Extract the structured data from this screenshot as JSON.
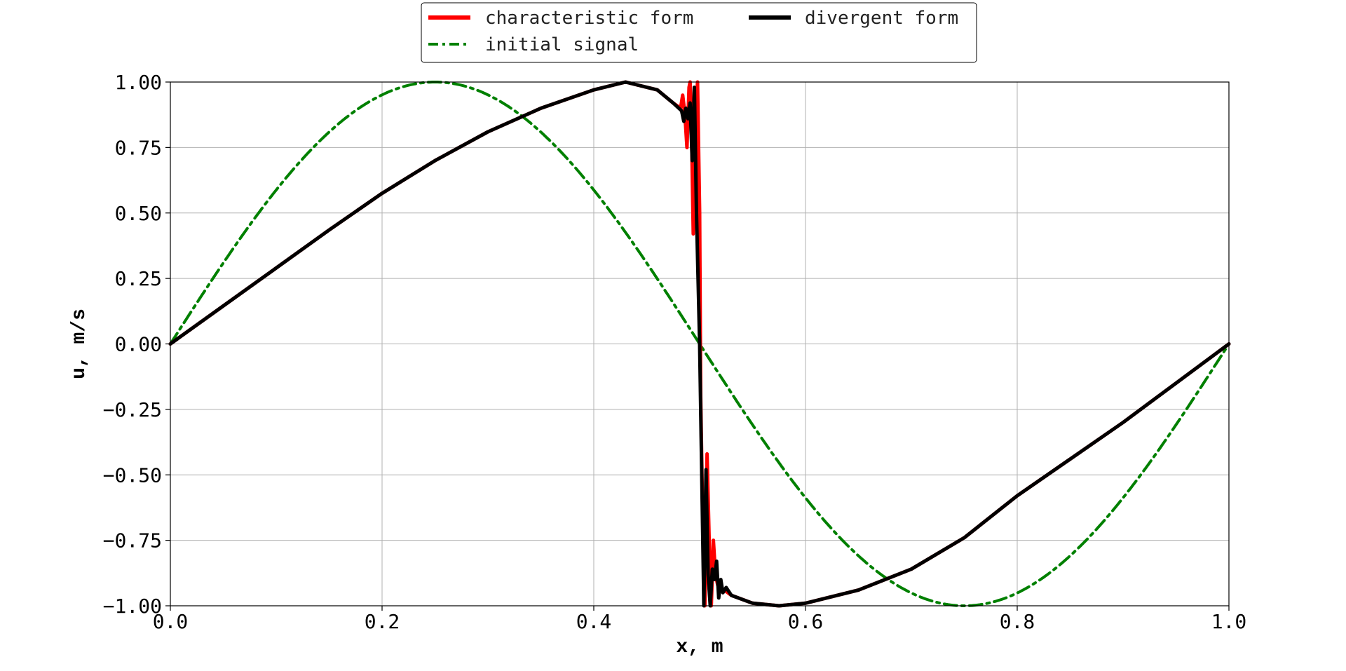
{
  "chart_data": {
    "type": "line",
    "xlabel": "x, m",
    "ylabel": "u, m/s",
    "xlim": [
      0.0,
      1.0
    ],
    "ylim": [
      -1.0,
      1.0
    ],
    "xticks": [
      "0.0",
      "0.2",
      "0.4",
      "0.6",
      "0.8",
      "1.0"
    ],
    "yticks": [
      "1.00",
      "0.75",
      "0.50",
      "0.25",
      "0.00",
      "−0.25",
      "−0.50",
      "−0.75",
      "−1.00"
    ],
    "grid": true,
    "legend_placement": "top-center",
    "series": [
      {
        "name": "characteristic form",
        "color": "#ff0000",
        "style": "solid",
        "x": [
          0.0,
          0.05,
          0.1,
          0.15,
          0.2,
          0.25,
          0.3,
          0.35,
          0.4,
          0.43,
          0.46,
          0.475,
          0.482,
          0.484,
          0.486,
          0.488,
          0.49,
          0.491,
          0.492,
          0.494,
          0.496,
          0.498,
          0.5,
          0.501,
          0.503,
          0.505,
          0.507,
          0.509,
          0.511,
          0.513,
          0.515,
          0.517,
          0.52,
          0.53,
          0.55,
          0.575,
          0.6,
          0.65,
          0.7,
          0.75,
          0.8,
          0.85,
          0.9,
          0.95,
          1.0
        ],
        "y": [
          0.0,
          0.145,
          0.29,
          0.435,
          0.575,
          0.7,
          0.81,
          0.9,
          0.97,
          1.0,
          0.97,
          0.92,
          0.9,
          0.95,
          0.88,
          0.75,
          0.98,
          1.0,
          0.9,
          0.42,
          0.85,
          1.0,
          0.5,
          -0.2,
          -0.7,
          -1.0,
          -0.42,
          -0.75,
          -1.0,
          -0.75,
          -0.88,
          -0.92,
          -0.93,
          -0.96,
          -0.99,
          -1.0,
          -0.99,
          -0.94,
          -0.86,
          -0.74,
          -0.58,
          -0.44,
          -0.3,
          -0.15,
          0.0
        ]
      },
      {
        "name": "divergent form",
        "color": "#000000",
        "style": "solid",
        "x": [
          0.0,
          0.05,
          0.1,
          0.15,
          0.2,
          0.25,
          0.3,
          0.35,
          0.4,
          0.43,
          0.46,
          0.475,
          0.483,
          0.485,
          0.487,
          0.489,
          0.491,
          0.493,
          0.495,
          0.497,
          0.5,
          0.502,
          0.504,
          0.506,
          0.508,
          0.51,
          0.512,
          0.514,
          0.516,
          0.518,
          0.52,
          0.522,
          0.525,
          0.53,
          0.55,
          0.575,
          0.6,
          0.65,
          0.7,
          0.75,
          0.8,
          0.85,
          0.9,
          0.95,
          1.0
        ],
        "y": [
          0.0,
          0.145,
          0.29,
          0.435,
          0.575,
          0.7,
          0.81,
          0.9,
          0.97,
          1.0,
          0.97,
          0.92,
          0.89,
          0.85,
          0.9,
          0.86,
          0.92,
          0.7,
          0.98,
          0.5,
          0.0,
          -0.5,
          -1.0,
          -0.48,
          -0.88,
          -1.0,
          -0.86,
          -0.9,
          -0.83,
          -0.97,
          -0.9,
          -0.95,
          -0.93,
          -0.96,
          -0.99,
          -1.0,
          -0.99,
          -0.94,
          -0.86,
          -0.74,
          -0.58,
          -0.44,
          -0.3,
          -0.15,
          0.0
        ]
      },
      {
        "name": "initial signal",
        "color": "#008000",
        "style": "dashdot",
        "function": "sin(2*pi*x)",
        "x": [
          0.0,
          0.025,
          0.05,
          0.075,
          0.1,
          0.125,
          0.15,
          0.175,
          0.2,
          0.225,
          0.25,
          0.275,
          0.3,
          0.325,
          0.35,
          0.375,
          0.4,
          0.425,
          0.45,
          0.475,
          0.5,
          0.525,
          0.55,
          0.575,
          0.6,
          0.625,
          0.65,
          0.675,
          0.7,
          0.725,
          0.75,
          0.775,
          0.8,
          0.825,
          0.85,
          0.875,
          0.9,
          0.925,
          0.95,
          0.975,
          1.0
        ],
        "y": [
          0.0,
          0.156,
          0.309,
          0.454,
          0.588,
          0.707,
          0.809,
          0.891,
          0.951,
          0.988,
          1.0,
          0.988,
          0.951,
          0.891,
          0.809,
          0.707,
          0.588,
          0.454,
          0.309,
          0.156,
          0.0,
          -0.156,
          -0.309,
          -0.454,
          -0.588,
          -0.707,
          -0.809,
          -0.891,
          -0.951,
          -0.988,
          -1.0,
          -0.988,
          -0.951,
          -0.891,
          -0.809,
          -0.707,
          -0.588,
          -0.454,
          -0.309,
          -0.156,
          0.0
        ]
      }
    ]
  }
}
